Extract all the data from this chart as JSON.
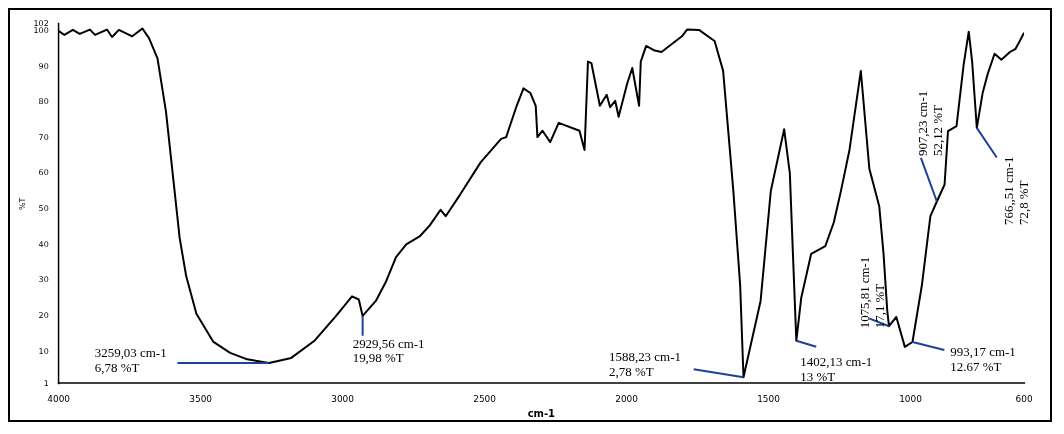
{
  "chart_data": {
    "type": "line",
    "xlabel": "cm-1",
    "ylabel": "%T",
    "xlim": [
      4000,
      600
    ],
    "ylim": [
      1,
      102
    ],
    "xticks": [
      4000,
      3500,
      3000,
      2500,
      2000,
      1500,
      1000,
      600
    ],
    "yticks": [
      1,
      10,
      20,
      30,
      40,
      50,
      60,
      70,
      80,
      90,
      100,
      102
    ],
    "grid": false,
    "legend": false,
    "marker": "none",
    "line_style": "solid",
    "series": [
      {
        "color": "#000000",
        "x": [
          4000,
          3980,
          3950,
          3926,
          3890,
          3872,
          3830,
          3812,
          3788,
          3741,
          3705,
          3682,
          3652,
          3622,
          3598,
          3574,
          3551,
          3515,
          3455,
          3396,
          3336,
          3259.03,
          3181,
          3098,
          3026,
          2967,
          2943,
          2929.56,
          2883,
          2848,
          2812,
          2776,
          2729,
          2693,
          2655,
          2637,
          2585,
          2514,
          2442,
          2424,
          2387,
          2363,
          2339,
          2320,
          2314,
          2296,
          2269,
          2239,
          2166,
          2148,
          2136,
          2124,
          2094,
          2070,
          2058,
          2040,
          2028,
          1998,
          1980,
          1956,
          1950,
          1931,
          1901,
          1877,
          1805,
          1787,
          1745,
          1690,
          1660,
          1624,
          1600,
          1588.23,
          1528,
          1492,
          1445,
          1425,
          1412,
          1402.13,
          1385,
          1350,
          1300,
          1270,
          1245,
          1215,
          1175,
          1145,
          1110,
          1095,
          1082,
          1075.81,
          1050,
          1020,
          993.17,
          960,
          930,
          907.23,
          880,
          868,
          838,
          813,
          795,
          783,
          766.51,
          746,
          728,
          704,
          680,
          650,
          630,
          600
        ],
        "values": [
          100,
          98.9,
          100.3,
          99.2,
          100.4,
          98.9,
          100.4,
          98.3,
          100.3,
          98.5,
          100.7,
          98,
          92.3,
          77.3,
          59.6,
          41.9,
          31.2,
          20.6,
          12.7,
          9.6,
          7.8,
          6.78,
          8.2,
          13.1,
          19.7,
          25.5,
          24.6,
          19.98,
          24.2,
          29.5,
          36.5,
          40.1,
          42.3,
          45.4,
          49.8,
          48,
          54.2,
          63.1,
          69.7,
          70.2,
          79,
          83.9,
          82.6,
          79,
          70.2,
          72,
          68.8,
          74.2,
          72,
          66.6,
          91.4,
          91,
          79,
          82.1,
          78.6,
          80.4,
          75.9,
          85.2,
          89.6,
          79,
          91.4,
          95.8,
          94.5,
          94.1,
          98.5,
          100.4,
          100.3,
          97.2,
          88.8,
          55.1,
          28.6,
          2.78,
          24.2,
          55.1,
          72.4,
          60,
          33,
          13,
          25,
          37.4,
          39.6,
          46.3,
          55.1,
          66.6,
          88.8,
          61.3,
          50.7,
          37.4,
          21.5,
          17.1,
          19.7,
          11.3,
          12.67,
          28.6,
          48,
          52.12,
          56.9,
          71.9,
          73.3,
          90.5,
          99.8,
          91.4,
          72.8,
          82.6,
          88,
          93.6,
          91.9,
          94.1,
          95,
          99.5
        ]
      }
    ],
    "annotations": [
      {
        "text": "3259,03 cm-1\n6,78 %T",
        "x": 3259.03,
        "y": 6.78
      },
      {
        "text": "2929,56 cm-1\n19,98 %T",
        "x": 2929.56,
        "y": 19.98
      },
      {
        "text": "1588,23 cm-1\n2,78 %T",
        "x": 1588.23,
        "y": 2.78
      },
      {
        "text": "1402,13 cm-1\n13 %T",
        "x": 1402.13,
        "y": 13
      },
      {
        "text": "1075,81 cm-1\n17,1 %T",
        "x": 1075.81,
        "y": 17.1
      },
      {
        "text": "993,17 cm-1\n12.67 %T",
        "x": 993.17,
        "y": 12.67
      },
      {
        "text": "907,23 cm-1\n52,12 %T",
        "x": 907.23,
        "y": 52.12
      },
      {
        "text": "766,,51 cm-1\n72,8 %T",
        "x": 766.51,
        "y": 72.8
      }
    ]
  }
}
